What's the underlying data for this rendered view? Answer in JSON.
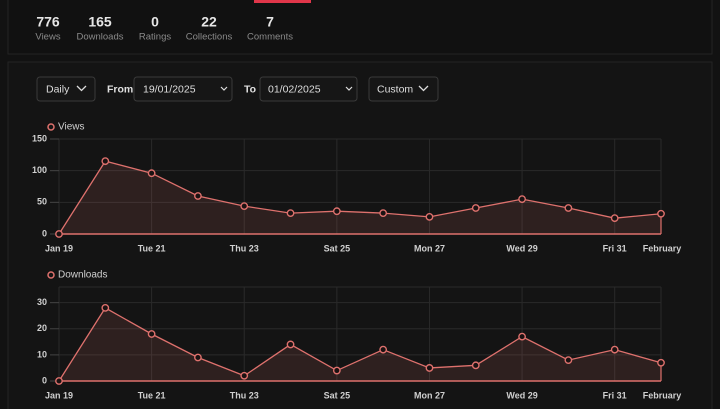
{
  "stats": [
    {
      "value": 776,
      "label": "Views"
    },
    {
      "value": 165,
      "label": "Downloads"
    },
    {
      "value": 0,
      "label": "Ratings"
    },
    {
      "value": 22,
      "label": "Collections"
    },
    {
      "value": 7,
      "label": "Comments"
    }
  ],
  "filters": {
    "interval": "Daily",
    "from_label": "From",
    "from": "19/01/2025",
    "to_label": "To",
    "to": "01/02/2025",
    "range": "Custom"
  },
  "chart_data": [
    {
      "type": "line",
      "categories": [
        "Jan 19",
        null,
        "Tue 21",
        null,
        "Thu 23",
        null,
        "Sat 25",
        null,
        "Mon 27",
        null,
        "Wed 29",
        null,
        "Fri 31",
        "February"
      ],
      "series": [
        {
          "name": "Views",
          "color": "#de716d",
          "values": [
            0,
            115,
            96,
            60,
            44,
            33,
            36,
            33,
            27,
            41,
            55,
            41,
            25,
            32
          ]
        }
      ],
      "ylim": [
        0,
        150
      ],
      "yticks": [
        0,
        50,
        100,
        150
      ],
      "grid": true
    },
    {
      "type": "line",
      "categories": [
        "Jan 19",
        null,
        "Tue 21",
        null,
        "Thu 23",
        null,
        "Sat 25",
        null,
        "Mon 27",
        null,
        "Wed 29",
        null,
        "Fri 31",
        "February"
      ],
      "series": [
        {
          "name": "Downloads",
          "color": "#de716d",
          "values": [
            0,
            28,
            18,
            9,
            2,
            14,
            4,
            12,
            5,
            6,
            17,
            8,
            12,
            7
          ]
        }
      ],
      "ylim": [
        0,
        36
      ],
      "yticks": [
        0,
        10,
        20,
        30
      ],
      "grid": true
    }
  ]
}
